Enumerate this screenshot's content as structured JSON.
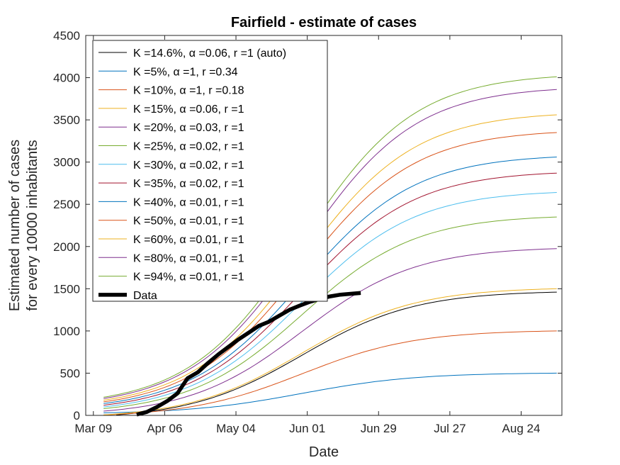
{
  "chart_data": {
    "type": "line",
    "title": "Fairfield - estimate of cases",
    "xlabel": "Date",
    "ylabel": [
      "Estimated number of cases",
      "for every 10000 inhabitants"
    ],
    "xlim": [
      "2020-03-06",
      "2020-09-09"
    ],
    "ylim": [
      0,
      4500
    ],
    "x_ticks": [
      {
        "date": "2020-03-09",
        "label": "Mar 09"
      },
      {
        "date": "2020-04-06",
        "label": "Apr 06"
      },
      {
        "date": "2020-05-04",
        "label": "May 04"
      },
      {
        "date": "2020-06-01",
        "label": "Jun 01"
      },
      {
        "date": "2020-06-29",
        "label": "Jun 29"
      },
      {
        "date": "2020-07-27",
        "label": "Jul 27"
      },
      {
        "date": "2020-08-24",
        "label": "Aug 24"
      }
    ],
    "y_ticks": [
      0,
      500,
      1000,
      1500,
      2000,
      2500,
      3000,
      3500,
      4000,
      4500
    ],
    "grid": false,
    "legend_position": "top-left",
    "legend": [
      {
        "label": "K =14.6%, α =0.06, r =1 (auto)",
        "color": "#000000"
      },
      {
        "label": "K =5%, α =1, r =0.34",
        "color": "#0072BD"
      },
      {
        "label": "K =10%, α =1, r =0.18",
        "color": "#D95319"
      },
      {
        "label": "K =15%, α =0.06, r =1",
        "color": "#EDB120"
      },
      {
        "label": "K =20%, α =0.03, r =1",
        "color": "#7E2F8E"
      },
      {
        "label": "K =25%, α =0.02, r =1",
        "color": "#77AC30"
      },
      {
        "label": "K =30%, α =0.02, r =1",
        "color": "#4DBEEE"
      },
      {
        "label": "K =35%, α =0.02, r =1",
        "color": "#A2142F"
      },
      {
        "label": "K =40%, α =0.01, r =1",
        "color": "#0072BD"
      },
      {
        "label": "K =50%, α =0.01, r =1",
        "color": "#D95319"
      },
      {
        "label": "K =60%, α =0.01, r =1",
        "color": "#EDB120"
      },
      {
        "label": "K =80%, α =0.01, r =1",
        "color": "#7E2F8E"
      },
      {
        "label": "K =94%, α =0.01, r =1",
        "color": "#77AC30"
      },
      {
        "label": "Data",
        "color": "#000000"
      }
    ],
    "series": [
      {
        "color": "#000000",
        "x_start": "2020-03-18",
        "y_start": 5,
        "x_end": "2020-09-07",
        "y_end": 1460,
        "logistic_scale": 1460
      },
      {
        "color": "#0072BD",
        "x_start": "2020-03-13",
        "y_start": 30,
        "x_end": "2020-09-07",
        "y_end": 500,
        "logistic_scale": 500
      },
      {
        "color": "#D95319",
        "x_start": "2020-03-13",
        "y_start": 5,
        "x_end": "2020-09-07",
        "y_end": 1000,
        "logistic_scale": 1000
      },
      {
        "color": "#EDB120",
        "x_start": "2020-03-13",
        "y_start": 5,
        "x_end": "2020-09-07",
        "y_end": 1500,
        "logistic_scale": 1500
      },
      {
        "color": "#7E2F8E",
        "x_start": "2020-03-13",
        "y_start": 50,
        "x_end": "2020-09-07",
        "y_end": 1975,
        "logistic_scale": 2000
      },
      {
        "color": "#77AC30",
        "x_start": "2020-03-13",
        "y_start": 80,
        "x_end": "2020-09-07",
        "y_end": 2350,
        "logistic_scale": 2500
      },
      {
        "color": "#4DBEEE",
        "x_start": "2020-03-13",
        "y_start": 100,
        "x_end": "2020-09-07",
        "y_end": 2640,
        "logistic_scale": 3000
      },
      {
        "color": "#A2142F",
        "x_start": "2020-03-13",
        "y_start": 120,
        "x_end": "2020-09-07",
        "y_end": 2870,
        "logistic_scale": 3500
      },
      {
        "color": "#0072BD",
        "x_start": "2020-03-13",
        "y_start": 140,
        "x_end": "2020-09-07",
        "y_end": 3060,
        "logistic_scale": 4000
      },
      {
        "color": "#D95319",
        "x_start": "2020-03-13",
        "y_start": 160,
        "x_end": "2020-09-07",
        "y_end": 3350,
        "logistic_scale": 5000
      },
      {
        "color": "#EDB120",
        "x_start": "2020-03-13",
        "y_start": 180,
        "x_end": "2020-09-07",
        "y_end": 3560,
        "logistic_scale": 6000
      },
      {
        "color": "#7E2F8E",
        "x_start": "2020-03-13",
        "y_start": 200,
        "x_end": "2020-09-07",
        "y_end": 3860,
        "logistic_scale": 8000
      },
      {
        "color": "#77AC30",
        "x_start": "2020-03-13",
        "y_start": 215,
        "x_end": "2020-09-07",
        "y_end": 4010,
        "logistic_scale": 9400
      }
    ],
    "data_series": {
      "name": "Data",
      "color": "#000000",
      "points": [
        [
          "2020-03-26",
          10
        ],
        [
          "2020-03-30",
          40
        ],
        [
          "2020-04-03",
          100
        ],
        [
          "2020-04-07",
          170
        ],
        [
          "2020-04-11",
          260
        ],
        [
          "2020-04-15",
          440
        ],
        [
          "2020-04-19",
          510
        ],
        [
          "2020-04-23",
          620
        ],
        [
          "2020-04-27",
          720
        ],
        [
          "2020-05-01",
          810
        ],
        [
          "2020-05-05",
          900
        ],
        [
          "2020-05-09",
          980
        ],
        [
          "2020-05-13",
          1060
        ],
        [
          "2020-05-17",
          1110
        ],
        [
          "2020-05-21",
          1180
        ],
        [
          "2020-05-25",
          1250
        ],
        [
          "2020-05-29",
          1300
        ],
        [
          "2020-06-02",
          1345
        ],
        [
          "2020-06-06",
          1380
        ],
        [
          "2020-06-10",
          1410
        ],
        [
          "2020-06-14",
          1430
        ],
        [
          "2020-06-18",
          1440
        ],
        [
          "2020-06-22",
          1450
        ]
      ]
    }
  }
}
